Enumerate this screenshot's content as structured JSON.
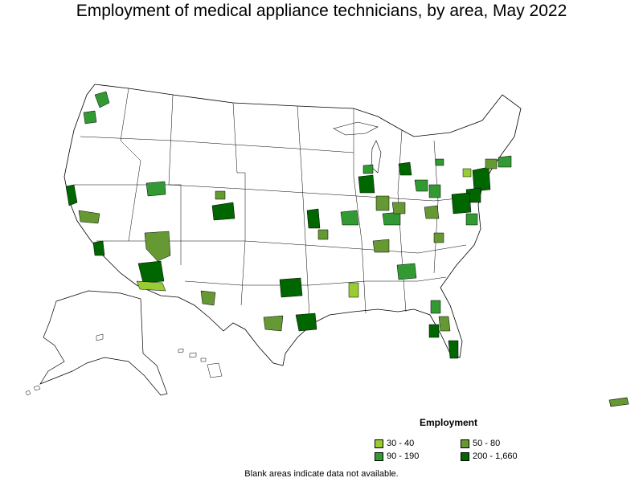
{
  "title": "Employment of medical appliance technicians, by area, May 2022",
  "legend": {
    "title": "Employment",
    "items": [
      {
        "label": "30 - 40",
        "color": "#99cc33"
      },
      {
        "label": "50 - 80",
        "color": "#669933"
      },
      {
        "label": "90 - 190",
        "color": "#339933"
      },
      {
        "label": "200 - 1,660",
        "color": "#006600"
      }
    ]
  },
  "footnote": "Blank areas indicate data not available.",
  "map": {
    "outline_color": "#000000",
    "fill_default": "#ffffff",
    "regions": [
      "contiguous-us",
      "alaska",
      "hawaii",
      "puerto-rico"
    ]
  }
}
